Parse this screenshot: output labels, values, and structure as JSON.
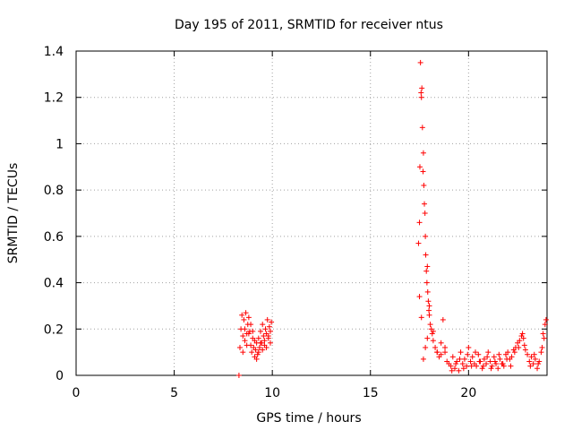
{
  "chart_data": {
    "type": "scatter",
    "title": "Day 195 of 2011, SRMTID for receiver ntus",
    "xlabel": "GPS time / hours",
    "ylabel": "SRMTID / TECUs",
    "xlim": [
      0,
      24
    ],
    "ylim": [
      0,
      1.4
    ],
    "xticks": [
      "0",
      "5",
      "10",
      "15",
      "20"
    ],
    "yticks": [
      "0",
      "0.2",
      "0.4",
      "0.6",
      "0.8",
      "1",
      "1.2",
      "1.4"
    ],
    "grid": true,
    "marker_color": "#ff0000",
    "marker": "+",
    "series": [
      {
        "x": [
          8.3,
          8.35,
          8.4,
          8.45,
          8.5,
          8.55,
          8.6,
          8.65,
          8.7,
          8.75,
          8.8,
          8.85,
          8.9,
          8.95,
          9.0,
          9.05,
          9.1,
          9.15,
          9.2,
          9.25,
          9.3,
          9.35,
          9.4,
          9.45,
          9.5,
          9.55,
          9.6,
          9.65,
          9.7,
          9.75,
          9.8,
          9.85,
          9.9,
          9.95,
          8.5,
          8.6,
          8.7,
          8.8,
          8.9,
          9.0,
          9.1,
          9.2,
          9.3,
          9.4,
          9.5,
          9.6,
          9.7,
          9.8,
          9.9,
          17.45,
          17.5,
          17.52,
          17.55,
          17.58,
          17.6,
          17.62,
          17.65,
          17.68,
          17.7,
          17.72,
          17.75,
          17.78,
          17.8,
          17.82,
          17.85,
          17.88,
          17.9,
          17.92,
          17.95,
          17.98,
          18.0,
          18.05,
          18.1,
          18.15,
          18.2,
          18.3,
          18.4,
          18.5,
          18.6,
          18.7,
          18.8,
          18.9,
          19.0,
          17.5,
          17.6,
          17.7,
          17.8,
          17.9,
          18.0,
          18.2,
          18.4,
          18.6,
          18.8,
          19.1,
          19.2,
          19.3,
          19.4,
          19.5,
          19.6,
          19.7,
          19.8,
          19.9,
          20.0,
          20.1,
          20.2,
          20.3,
          20.4,
          20.5,
          20.6,
          20.7,
          20.8,
          20.9,
          21.0,
          21.1,
          21.2,
          21.3,
          21.4,
          21.5,
          21.6,
          21.7,
          21.8,
          21.9,
          22.0,
          22.1,
          22.2,
          22.3,
          22.4,
          22.5,
          22.6,
          22.7,
          22.75,
          22.8,
          22.85,
          22.9,
          23.0,
          23.1,
          23.2,
          23.3,
          23.4,
          23.5,
          23.6,
          23.7,
          23.8,
          23.9,
          23.95,
          19.15,
          19.35,
          19.55,
          19.75,
          19.95,
          20.15,
          20.35,
          20.55,
          20.75,
          20.95,
          21.15,
          21.35,
          21.55,
          21.75,
          21.95,
          22.15,
          22.35,
          22.55,
          23.15,
          23.35,
          23.55,
          23.75,
          23.85
        ],
        "y": [
          0.0,
          0.12,
          0.2,
          0.26,
          0.17,
          0.24,
          0.15,
          0.27,
          0.18,
          0.22,
          0.25,
          0.19,
          0.13,
          0.1,
          0.16,
          0.12,
          0.08,
          0.11,
          0.14,
          0.09,
          0.16,
          0.12,
          0.19,
          0.14,
          0.22,
          0.17,
          0.13,
          0.2,
          0.18,
          0.24,
          0.16,
          0.21,
          0.19,
          0.23,
          0.1,
          0.2,
          0.13,
          0.18,
          0.22,
          0.19,
          0.15,
          0.07,
          0.1,
          0.14,
          0.11,
          0.15,
          0.12,
          0.17,
          0.14,
          0.57,
          0.66,
          0.9,
          1.35,
          1.22,
          1.2,
          1.24,
          1.07,
          0.88,
          0.96,
          0.82,
          0.74,
          0.7,
          0.6,
          0.52,
          0.45,
          0.4,
          0.47,
          0.36,
          0.32,
          0.28,
          0.26,
          0.22,
          0.2,
          0.18,
          0.15,
          0.12,
          0.1,
          0.08,
          0.14,
          0.24,
          0.1,
          0.06,
          0.05,
          0.34,
          0.25,
          0.07,
          0.12,
          0.16,
          0.3,
          0.19,
          0.1,
          0.09,
          0.12,
          0.04,
          0.08,
          0.03,
          0.06,
          0.02,
          0.1,
          0.05,
          0.07,
          0.04,
          0.12,
          0.06,
          0.08,
          0.05,
          0.04,
          0.09,
          0.06,
          0.03,
          0.07,
          0.05,
          0.1,
          0.06,
          0.04,
          0.08,
          0.05,
          0.03,
          0.07,
          0.05,
          0.04,
          0.09,
          0.1,
          0.07,
          0.08,
          0.11,
          0.12,
          0.14,
          0.15,
          0.17,
          0.18,
          0.16,
          0.13,
          0.11,
          0.09,
          0.06,
          0.08,
          0.05,
          0.07,
          0.03,
          0.06,
          0.1,
          0.18,
          0.22,
          0.24,
          0.02,
          0.05,
          0.07,
          0.03,
          0.09,
          0.04,
          0.1,
          0.06,
          0.04,
          0.08,
          0.03,
          0.06,
          0.09,
          0.05,
          0.07,
          0.04,
          0.1,
          0.12,
          0.04,
          0.09,
          0.05,
          0.12,
          0.16
        ]
      }
    ]
  }
}
